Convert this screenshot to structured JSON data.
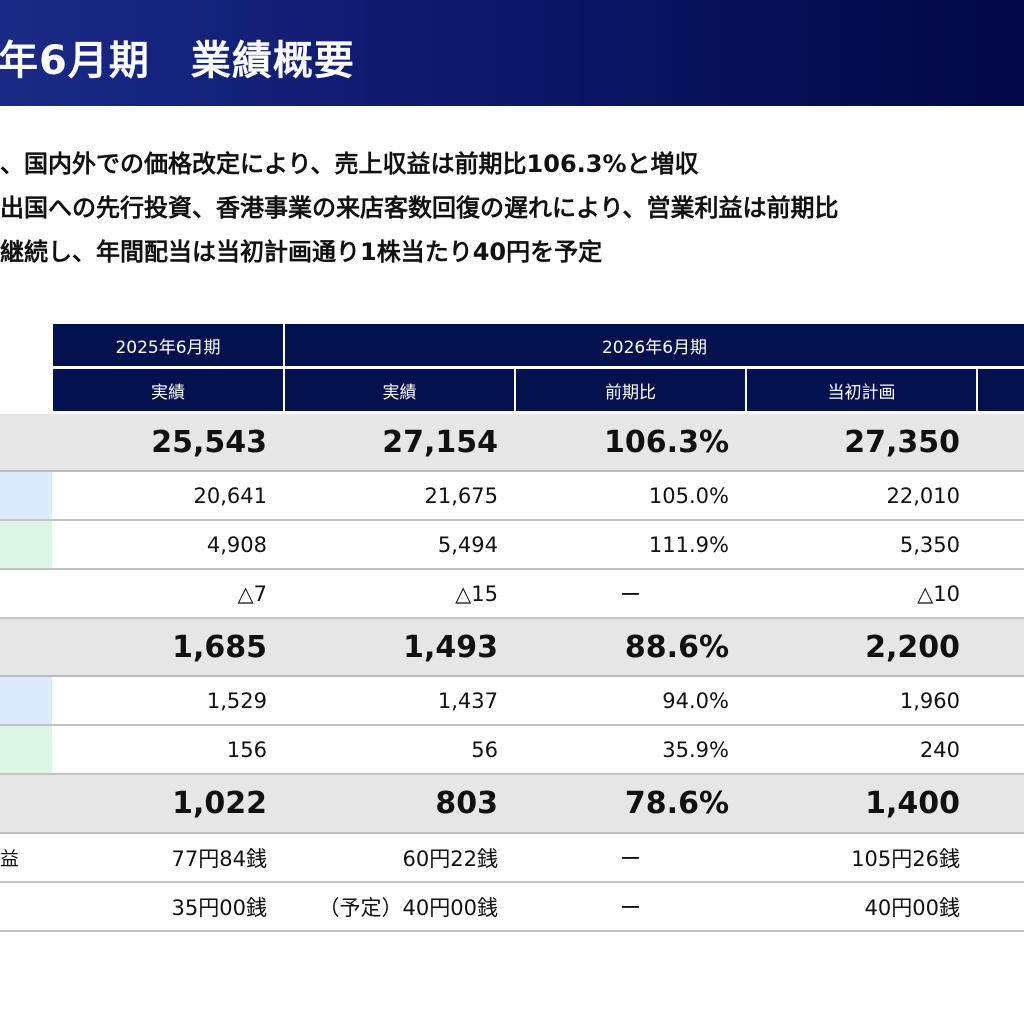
{
  "header": {
    "title": "年6月期　業績概要"
  },
  "summary": [
    "、国内外での価格改定により、売上収益は前期比106.3%と増収",
    "出国への先行投資、香港事業の来店客数回復の遅れにより、営業利益は前期比",
    "継続し、年間配当は当初計画通り1株当たり40円を予定"
  ],
  "table": {
    "group_headers": {
      "fy2025": "2025年6月期",
      "fy2026": "2026年6月期"
    },
    "sub_headers": {
      "actual_2025": "実績",
      "actual_2026": "実績",
      "yoy": "前期比",
      "plan": "当初計画",
      "extra": ""
    },
    "colors": {
      "header": "#03114f",
      "shade": "#e6e6e6",
      "swatch_blue": "#dcebfb",
      "swatch_green": "#dcf5e4"
    },
    "rows": [
      {
        "label": "",
        "swatch": "",
        "c2025": "25,543",
        "c2026": "27,154",
        "yoy": "106.3%",
        "plan": "27,350"
      },
      {
        "label": "",
        "swatch": "blue",
        "c2025": "20,641",
        "c2026": "21,675",
        "yoy": "105.0%",
        "plan": "22,010"
      },
      {
        "label": "",
        "swatch": "green",
        "c2025": "4,908",
        "c2026": "5,494",
        "yoy": "111.9%",
        "plan": "5,350"
      },
      {
        "label": "",
        "swatch": "",
        "c2025": "△7",
        "c2026": "△15",
        "yoy": "ー",
        "plan": "△10"
      },
      {
        "label": "",
        "swatch": "",
        "c2025": "1,685",
        "c2026": "1,493",
        "yoy": "88.6%",
        "plan": "2,200"
      },
      {
        "label": "",
        "swatch": "blue",
        "c2025": "1,529",
        "c2026": "1,437",
        "yoy": "94.0%",
        "plan": "1,960"
      },
      {
        "label": "",
        "swatch": "green",
        "c2025": "156",
        "c2026": "56",
        "yoy": "35.9%",
        "plan": "240"
      },
      {
        "label": "",
        "swatch": "",
        "c2025": "1,022",
        "c2026": "803",
        "yoy": "78.6%",
        "plan": "1,400"
      },
      {
        "label": "益",
        "swatch": "",
        "c2025": "77円84銭",
        "c2026": "60円22銭",
        "yoy": "ー",
        "plan": "105円26銭"
      },
      {
        "label": "",
        "swatch": "",
        "c2025": "35円00銭",
        "c2026": "（予定）40円00銭",
        "yoy": "ー",
        "plan": "40円00銭"
      }
    ]
  }
}
